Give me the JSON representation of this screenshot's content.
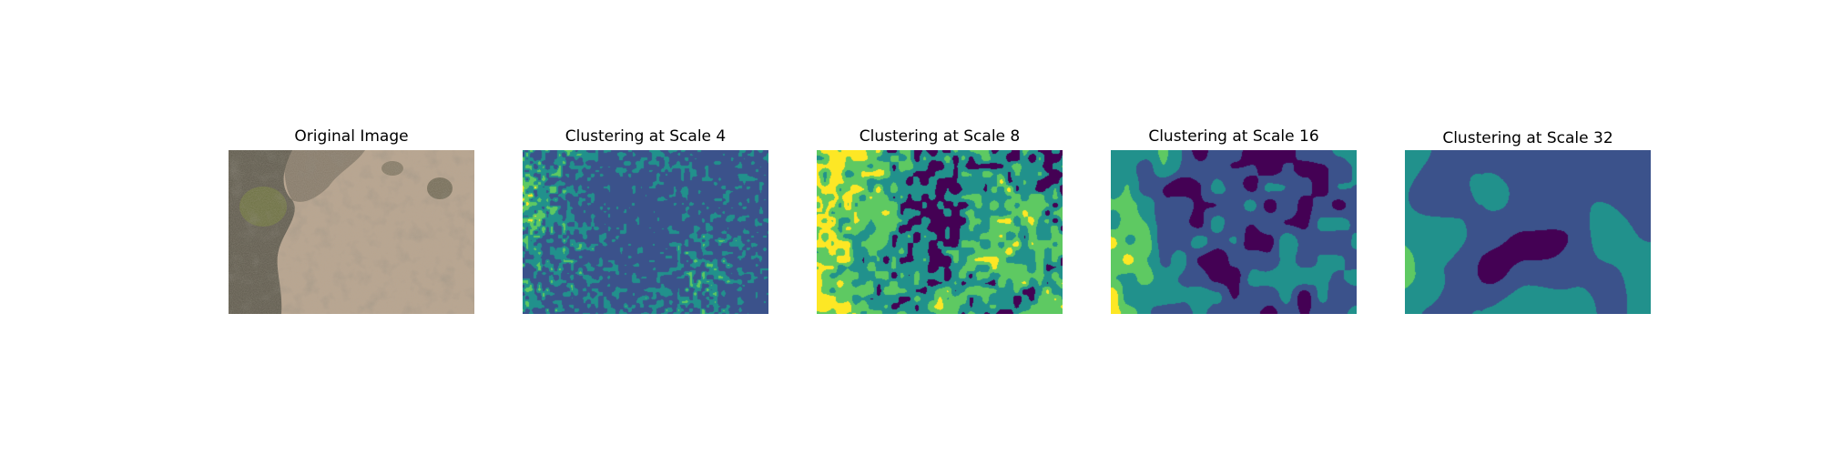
{
  "figure": {
    "panels": [
      {
        "title": "Original Image",
        "kind": "photo",
        "description_key": "arid-ground-aerial"
      },
      {
        "title": "Clustering at Scale 4",
        "kind": "cluster-map",
        "scale": 4,
        "cluster_count": 5
      },
      {
        "title": "Clustering at Scale 8",
        "kind": "cluster-map",
        "scale": 8,
        "cluster_count": 5
      },
      {
        "title": "Clustering at Scale 16",
        "kind": "cluster-map",
        "scale": 16,
        "cluster_count": 5
      },
      {
        "title": "Clustering at Scale 32",
        "kind": "cluster-map",
        "scale": 32,
        "cluster_count": 5
      }
    ],
    "colormap": {
      "name": "viridis",
      "colors": [
        "#440154",
        "#3b528b",
        "#21918c",
        "#5ec962",
        "#fde725"
      ]
    },
    "photo_palette": {
      "soil": "#b9a58f",
      "soil_dark": "#a08b76",
      "shadow": "#5e5a4d",
      "brush": "#4a4a35",
      "shrub": "#6b7040"
    }
  }
}
